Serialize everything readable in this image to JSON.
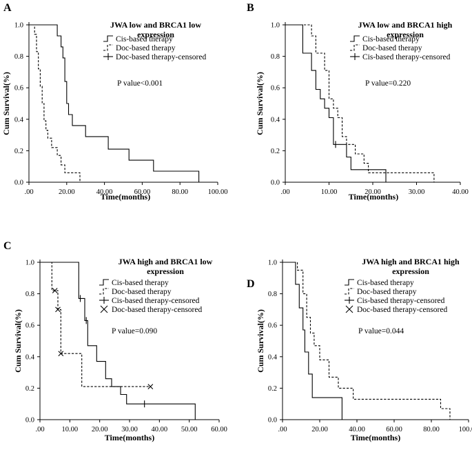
{
  "chart_data": [
    {
      "panel": "A",
      "type": "line",
      "step": true,
      "title_lines": [
        "JWA low and BRCA1 low",
        "expression"
      ],
      "xlabel": "Time(months)",
      "ylabel": "Cum Survival(%)",
      "xlim": [
        0,
        100
      ],
      "ylim": [
        0,
        1.0
      ],
      "xticks": [
        ".00",
        "20.00",
        "40.00",
        "60.00",
        "80.00",
        "100.00"
      ],
      "yticks": [
        "0.0",
        "0.2",
        "0.4",
        "0.6",
        "0.8",
        "1.0"
      ],
      "legend": [
        "Cis-based therapy",
        "Doc-based therapy",
        "Doc-based therapy-censored"
      ],
      "p_value": "P value<0.001",
      "series": [
        {
          "name": "Cis-based therapy",
          "style": "solid",
          "points": [
            [
              0,
              1.0
            ],
            [
              15,
              1.0
            ],
            [
              15,
              0.93
            ],
            [
              17,
              0.93
            ],
            [
              17,
              0.86
            ],
            [
              18,
              0.86
            ],
            [
              18,
              0.79
            ],
            [
              19,
              0.79
            ],
            [
              19,
              0.64
            ],
            [
              20,
              0.64
            ],
            [
              20,
              0.5
            ],
            [
              21,
              0.5
            ],
            [
              21,
              0.43
            ],
            [
              23,
              0.43
            ],
            [
              23,
              0.36
            ],
            [
              30,
              0.36
            ],
            [
              30,
              0.29
            ],
            [
              42,
              0.29
            ],
            [
              42,
              0.21
            ],
            [
              53,
              0.21
            ],
            [
              53,
              0.14
            ],
            [
              66,
              0.14
            ],
            [
              66,
              0.07
            ],
            [
              90,
              0.07
            ],
            [
              90,
              0.0
            ]
          ],
          "censored": []
        },
        {
          "name": "Doc-based therapy",
          "style": "dashed",
          "points": [
            [
              0,
              1.0
            ],
            [
              3,
              1.0
            ],
            [
              3,
              0.94
            ],
            [
              4,
              0.94
            ],
            [
              4,
              0.83
            ],
            [
              5,
              0.83
            ],
            [
              5,
              0.72
            ],
            [
              6,
              0.72
            ],
            [
              6,
              0.61
            ],
            [
              7,
              0.61
            ],
            [
              7,
              0.5
            ],
            [
              8,
              0.5
            ],
            [
              8,
              0.39
            ],
            [
              9,
              0.39
            ],
            [
              9,
              0.33
            ],
            [
              10,
              0.33
            ],
            [
              10,
              0.28
            ],
            [
              12,
              0.28
            ],
            [
              12,
              0.22
            ],
            [
              15,
              0.22
            ],
            [
              15,
              0.17
            ],
            [
              17,
              0.17
            ],
            [
              17,
              0.11
            ],
            [
              19,
              0.11
            ],
            [
              19,
              0.06
            ],
            [
              27,
              0.06
            ],
            [
              27,
              0.0
            ]
          ],
          "censored": []
        }
      ]
    },
    {
      "panel": "B",
      "type": "line",
      "step": true,
      "title_lines": [
        "JWA low and BRCA1 high",
        "expression"
      ],
      "xlabel": "Time(months)",
      "ylabel": "Cum Survival(%)",
      "xlim": [
        0,
        40
      ],
      "ylim": [
        0,
        1.0
      ],
      "xticks": [
        ".00",
        "10.00",
        "20.00",
        "30.00",
        "40.00"
      ],
      "yticks": [
        "0.0",
        "0.2",
        "0.4",
        "0.6",
        "0.8",
        "1.0"
      ],
      "legend": [
        "Cis-based therapy",
        "Doc-based therapy",
        "Cis-based therapy-censored"
      ],
      "p_value": "P value=0.220",
      "series": [
        {
          "name": "Cis-based therapy",
          "style": "solid",
          "points": [
            [
              0,
              1.0
            ],
            [
              4,
              1.0
            ],
            [
              4,
              0.82
            ],
            [
              6,
              0.82
            ],
            [
              6,
              0.71
            ],
            [
              7,
              0.71
            ],
            [
              7,
              0.59
            ],
            [
              8,
              0.59
            ],
            [
              8,
              0.53
            ],
            [
              9,
              0.53
            ],
            [
              9,
              0.47
            ],
            [
              10,
              0.47
            ],
            [
              10,
              0.41
            ],
            [
              11,
              0.41
            ],
            [
              11,
              0.24
            ],
            [
              14,
              0.24
            ],
            [
              14,
              0.16
            ],
            [
              15,
              0.16
            ],
            [
              15,
              0.08
            ],
            [
              23,
              0.08
            ],
            [
              23,
              0.0
            ]
          ],
          "censored": [
            [
              11.5,
              0.24
            ]
          ]
        },
        {
          "name": "Doc-based therapy",
          "style": "dashed",
          "points": [
            [
              0,
              1.0
            ],
            [
              6,
              1.0
            ],
            [
              6,
              0.93
            ],
            [
              7,
              0.93
            ],
            [
              7,
              0.82
            ],
            [
              9,
              0.82
            ],
            [
              9,
              0.71
            ],
            [
              10,
              0.71
            ],
            [
              10,
              0.53
            ],
            [
              11,
              0.53
            ],
            [
              11,
              0.47
            ],
            [
              12,
              0.47
            ],
            [
              12,
              0.41
            ],
            [
              13,
              0.41
            ],
            [
              13,
              0.29
            ],
            [
              14,
              0.29
            ],
            [
              14,
              0.24
            ],
            [
              16,
              0.24
            ],
            [
              16,
              0.18
            ],
            [
              18,
              0.18
            ],
            [
              18,
              0.12
            ],
            [
              19,
              0.12
            ],
            [
              19,
              0.06
            ],
            [
              34,
              0.06
            ],
            [
              34,
              0.0
            ]
          ],
          "censored": []
        }
      ]
    },
    {
      "panel": "C",
      "type": "line",
      "step": true,
      "title_lines": [
        "JWA high and BRCA1 low",
        "expression"
      ],
      "xlabel": "Time(months)",
      "ylabel": "Cum Survival(%)",
      "xlim": [
        0,
        60
      ],
      "ylim": [
        0,
        1.0
      ],
      "xticks": [
        ".00",
        "10.00",
        "20.00",
        "30.00",
        "40.00",
        "50.00",
        "60.00"
      ],
      "yticks": [
        "0.0",
        "0.2",
        "0.4",
        "0.6",
        "0.8",
        "1.0"
      ],
      "legend": [
        "Cis-based therapy",
        "Doc-based therapy",
        "Cis-based therapy-censored",
        "Doc-based therapy-censored"
      ],
      "p_value": "P value=0.090",
      "series": [
        {
          "name": "Cis-based therapy",
          "style": "solid",
          "points": [
            [
              0,
              1.0
            ],
            [
              13,
              1.0
            ],
            [
              13,
              0.77
            ],
            [
              15,
              0.77
            ],
            [
              15,
              0.63
            ],
            [
              16,
              0.63
            ],
            [
              16,
              0.47
            ],
            [
              19,
              0.47
            ],
            [
              19,
              0.37
            ],
            [
              22,
              0.37
            ],
            [
              22,
              0.26
            ],
            [
              24,
              0.26
            ],
            [
              24,
              0.21
            ],
            [
              27,
              0.21
            ],
            [
              27,
              0.16
            ],
            [
              29,
              0.16
            ],
            [
              29,
              0.1
            ],
            [
              52,
              0.1
            ],
            [
              52,
              0.0
            ]
          ],
          "censored": [
            [
              13.5,
              0.77
            ],
            [
              15.5,
              0.63
            ],
            [
              35,
              0.1
            ]
          ]
        },
        {
          "name": "Doc-based therapy",
          "style": "dashed",
          "points": [
            [
              0,
              1.0
            ],
            [
              4,
              1.0
            ],
            [
              4,
              0.82
            ],
            [
              6,
              0.82
            ],
            [
              6,
              0.7
            ],
            [
              7,
              0.7
            ],
            [
              7,
              0.42
            ],
            [
              14,
              0.42
            ],
            [
              14,
              0.21
            ],
            [
              37,
              0.21
            ]
          ],
          "censored": [
            [
              5,
              0.82
            ],
            [
              6,
              0.7
            ],
            [
              7,
              0.42
            ],
            [
              37,
              0.21
            ]
          ]
        }
      ]
    },
    {
      "panel": "D",
      "type": "line",
      "step": true,
      "title_lines": [
        "JWA high and BRCA1 high",
        "expression"
      ],
      "xlabel": "Time(months)",
      "ylabel": "Cum Survival(%)",
      "xlim": [
        0,
        100
      ],
      "ylim": [
        0,
        1.0
      ],
      "xticks": [
        ".00",
        "20.00",
        "40.00",
        "60.00",
        "80.00",
        "100.00"
      ],
      "yticks": [
        "0.0",
        "0.2",
        "0.4",
        "0.6",
        "0.8",
        "1.0"
      ],
      "legend": [
        "Cis-based therapy",
        "Doc-based therapy",
        "Cis-based therapy-censored",
        "Doc-based therapy-censored"
      ],
      "p_value": "P value=0.044",
      "series": [
        {
          "name": "Cis-based therapy",
          "style": "solid",
          "points": [
            [
              0,
              1.0
            ],
            [
              7,
              1.0
            ],
            [
              7,
              0.86
            ],
            [
              9,
              0.86
            ],
            [
              9,
              0.71
            ],
            [
              11,
              0.71
            ],
            [
              11,
              0.57
            ],
            [
              12,
              0.57
            ],
            [
              12,
              0.43
            ],
            [
              14,
              0.43
            ],
            [
              14,
              0.29
            ],
            [
              16,
              0.29
            ],
            [
              16,
              0.14
            ],
            [
              32,
              0.14
            ],
            [
              32,
              0.0
            ]
          ],
          "censored": []
        },
        {
          "name": "Doc-based therapy",
          "style": "dashed",
          "points": [
            [
              0,
              1.0
            ],
            [
              8,
              1.0
            ],
            [
              8,
              0.95
            ],
            [
              11,
              0.95
            ],
            [
              11,
              0.8
            ],
            [
              13,
              0.8
            ],
            [
              13,
              0.65
            ],
            [
              15,
              0.65
            ],
            [
              15,
              0.55
            ],
            [
              17,
              0.55
            ],
            [
              17,
              0.47
            ],
            [
              20,
              0.47
            ],
            [
              20,
              0.38
            ],
            [
              25,
              0.38
            ],
            [
              25,
              0.27
            ],
            [
              30,
              0.27
            ],
            [
              30,
              0.2
            ],
            [
              38,
              0.2
            ],
            [
              38,
              0.13
            ],
            [
              85,
              0.13
            ],
            [
              85,
              0.07
            ],
            [
              90,
              0.07
            ],
            [
              90,
              0.0
            ]
          ],
          "censored": []
        }
      ]
    }
  ]
}
